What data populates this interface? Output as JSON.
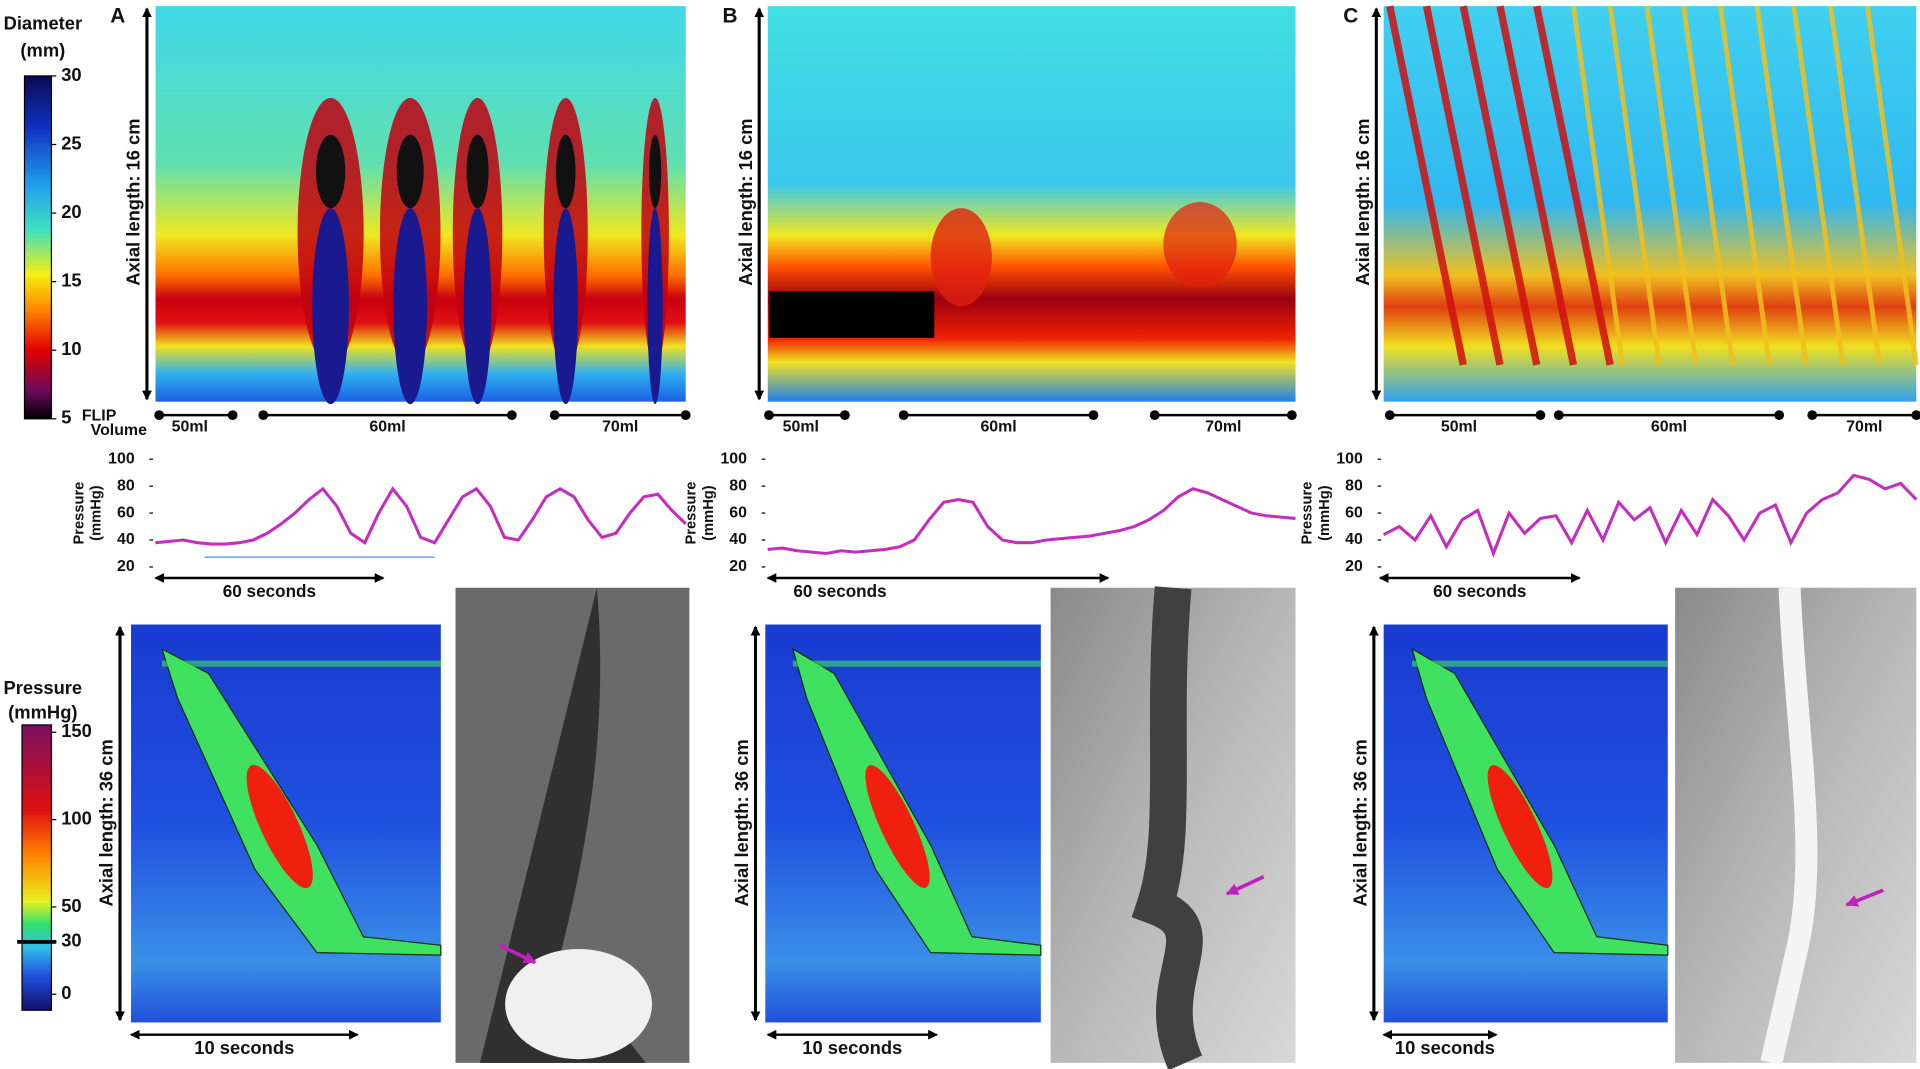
{
  "diameter_scale": {
    "title_lines": [
      "Diameter",
      "(mm)"
    ],
    "lim": [
      5,
      30
    ],
    "ticks": [
      5,
      10,
      15,
      20,
      25,
      30
    ]
  },
  "pressure_scale": {
    "title_lines": [
      "Pressure",
      "(mmHg)"
    ],
    "lim": [
      0,
      150
    ],
    "ticks": [
      0,
      30,
      50,
      100,
      150
    ],
    "threshold": 30
  },
  "flip_volume_lines": [
    "FLIP",
    "Volume"
  ],
  "panels": [
    {
      "letter": "A",
      "flip_axis_label": "Axial length: 16 cm",
      "volumes": [
        "50ml",
        "60ml",
        "70ml"
      ],
      "pressure": {
        "ylabel_lines": [
          "Pressure",
          "(mmHg)"
        ],
        "ylim": [
          20,
          100
        ],
        "yticks": [
          20,
          40,
          60,
          80,
          100
        ],
        "values": [
          38,
          39,
          40,
          38,
          37,
          37,
          38,
          40,
          45,
          52,
          60,
          70,
          78,
          65,
          45,
          38,
          60,
          78,
          65,
          42,
          38,
          55,
          72,
          78,
          65,
          42,
          40,
          55,
          72,
          78,
          72,
          55,
          42,
          45,
          60,
          72,
          74,
          62,
          52
        ]
      },
      "time_label": "60 seconds",
      "hrm_axis_label": "Axial length: 36 cm",
      "hrm_time_label": "10 seconds"
    },
    {
      "letter": "B",
      "flip_axis_label": "Axial length: 16 cm",
      "volumes": [
        "50ml",
        "60ml",
        "70ml"
      ],
      "pressure": {
        "ylabel_lines": [
          "Pressure",
          "(mmHg)"
        ],
        "ylim": [
          20,
          100
        ],
        "yticks": [
          20,
          40,
          60,
          80,
          100
        ],
        "values": [
          33,
          34,
          32,
          31,
          30,
          32,
          31,
          32,
          33,
          35,
          40,
          55,
          68,
          70,
          68,
          50,
          40,
          38,
          38,
          40,
          41,
          42,
          43,
          45,
          47,
          50,
          55,
          62,
          72,
          78,
          75,
          70,
          65,
          60,
          58,
          57,
          56
        ]
      },
      "time_label": "60 seconds",
      "hrm_axis_label": "Axial length: 36 cm",
      "hrm_time_label": "10 seconds"
    },
    {
      "letter": "C",
      "flip_axis_label": "Axial length: 16 cm",
      "volumes": [
        "50ml",
        "60ml",
        "70ml"
      ],
      "pressure": {
        "ylabel_lines": [
          "Pressure",
          "(mmHg)"
        ],
        "ylim": [
          20,
          100
        ],
        "yticks": [
          20,
          40,
          60,
          80,
          100
        ],
        "values": [
          44,
          50,
          40,
          58,
          35,
          55,
          62,
          30,
          60,
          45,
          56,
          58,
          38,
          62,
          40,
          68,
          55,
          64,
          38,
          62,
          44,
          70,
          58,
          40,
          60,
          66,
          38,
          60,
          70,
          75,
          88,
          85,
          78,
          82,
          70
        ]
      },
      "time_label": "60 seconds",
      "hrm_axis_label": "Axial length: 36 cm",
      "hrm_time_label": "10 seconds"
    }
  ]
}
